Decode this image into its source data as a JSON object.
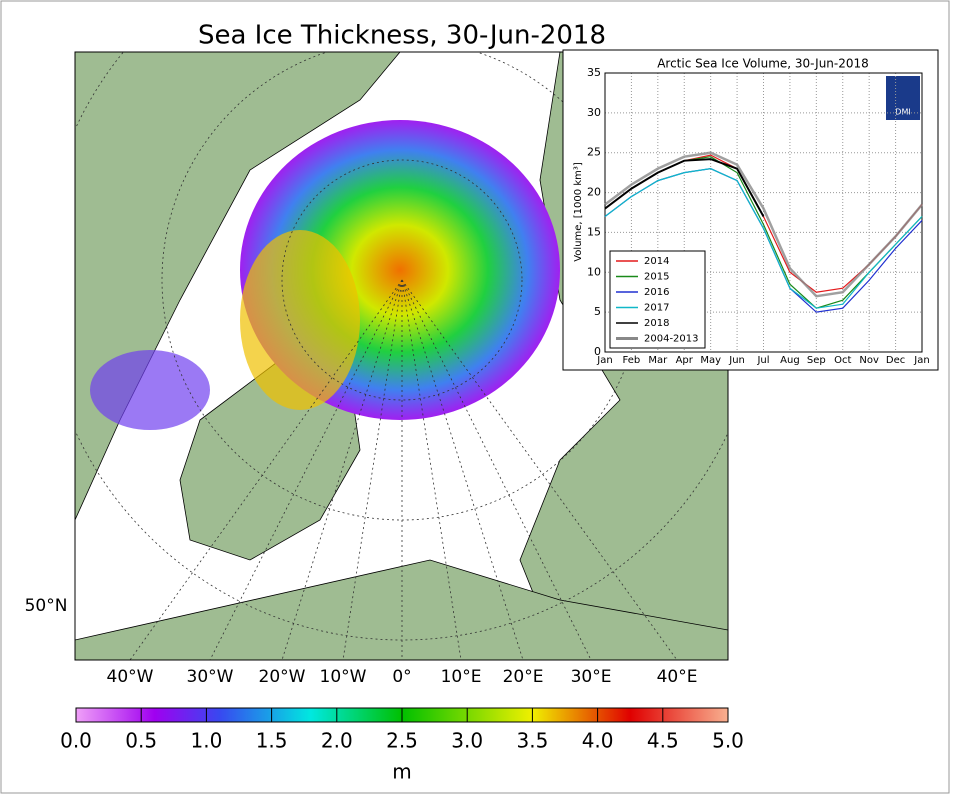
{
  "map": {
    "title": "Sea Ice Thickness, 30-Jun-2018",
    "longitude_labels": [
      "40°W",
      "30°W",
      "20°W",
      "10°W",
      "0°",
      "10°E",
      "20°E",
      "30°E",
      "40°E"
    ],
    "latitude_label": "50°N",
    "colorbar": {
      "clim": [
        0,
        5
      ],
      "ticks": [
        {
          "value": 0,
          "label": "0.0"
        },
        0.5,
        {
          "value": 1,
          "label": "1.0"
        },
        1.5,
        {
          "value": 2,
          "label": "2.0"
        },
        2.5,
        {
          "value": 3,
          "label": "3.0"
        },
        3.5,
        {
          "value": 4,
          "label": "4.0"
        },
        4.5,
        {
          "value": 5,
          "label": "5.0"
        }
      ],
      "unit": "m"
    }
  },
  "inset_logo": "DMI",
  "chart_data": {
    "type": "line",
    "title": "Arctic Sea Ice Volume, 30-Jun-2018",
    "y_label": "Volume, [1000 km³]",
    "categories": [
      "Jan",
      "Feb",
      "Mar",
      "Apr",
      "May",
      "Jun",
      "Jul",
      "Aug",
      "Sep",
      "Oct",
      "Nov",
      "Dec",
      "Jan"
    ],
    "ylim": [
      0,
      35
    ],
    "yticks": [
      0,
      5,
      10,
      15,
      20,
      25,
      30,
      35
    ],
    "grid": true,
    "legend": "lower left",
    "series": [
      {
        "name": "2014",
        "color": "#e41a1c",
        "values": [
          18,
          20.5,
          22.5,
          24,
          24.7,
          23,
          17,
          10,
          7.5,
          8,
          11,
          14.5,
          18.5
        ]
      },
      {
        "name": "2015",
        "color": "#1a8a1a",
        "values": [
          18,
          20.5,
          22.5,
          24,
          24.5,
          22.5,
          16,
          8.5,
          5.5,
          6.5,
          10,
          13.5,
          17
        ]
      },
      {
        "name": "2016",
        "color": "#2030d0",
        "values": [
          17,
          19.5,
          21.5,
          22.5,
          23,
          21.5,
          15.5,
          8,
          5,
          5.5,
          9,
          13,
          16.5
        ]
      },
      {
        "name": "2017",
        "color": "#10b8c8",
        "values": [
          17,
          19.5,
          21.5,
          22.5,
          23,
          21.5,
          15.5,
          8,
          5.5,
          6,
          10,
          13.5,
          17
        ]
      },
      {
        "name": "2018",
        "color": "#000000",
        "values": [
          18,
          20.5,
          22.5,
          24,
          24.2,
          23,
          17,
          null,
          null,
          null,
          null,
          null,
          null
        ]
      },
      {
        "name": "2004-2013",
        "color": "#888888",
        "values": [
          18.5,
          21,
          23,
          24.5,
          25,
          23.5,
          18,
          10.5,
          7,
          7.5,
          11,
          14.5,
          18.5
        ]
      }
    ]
  }
}
